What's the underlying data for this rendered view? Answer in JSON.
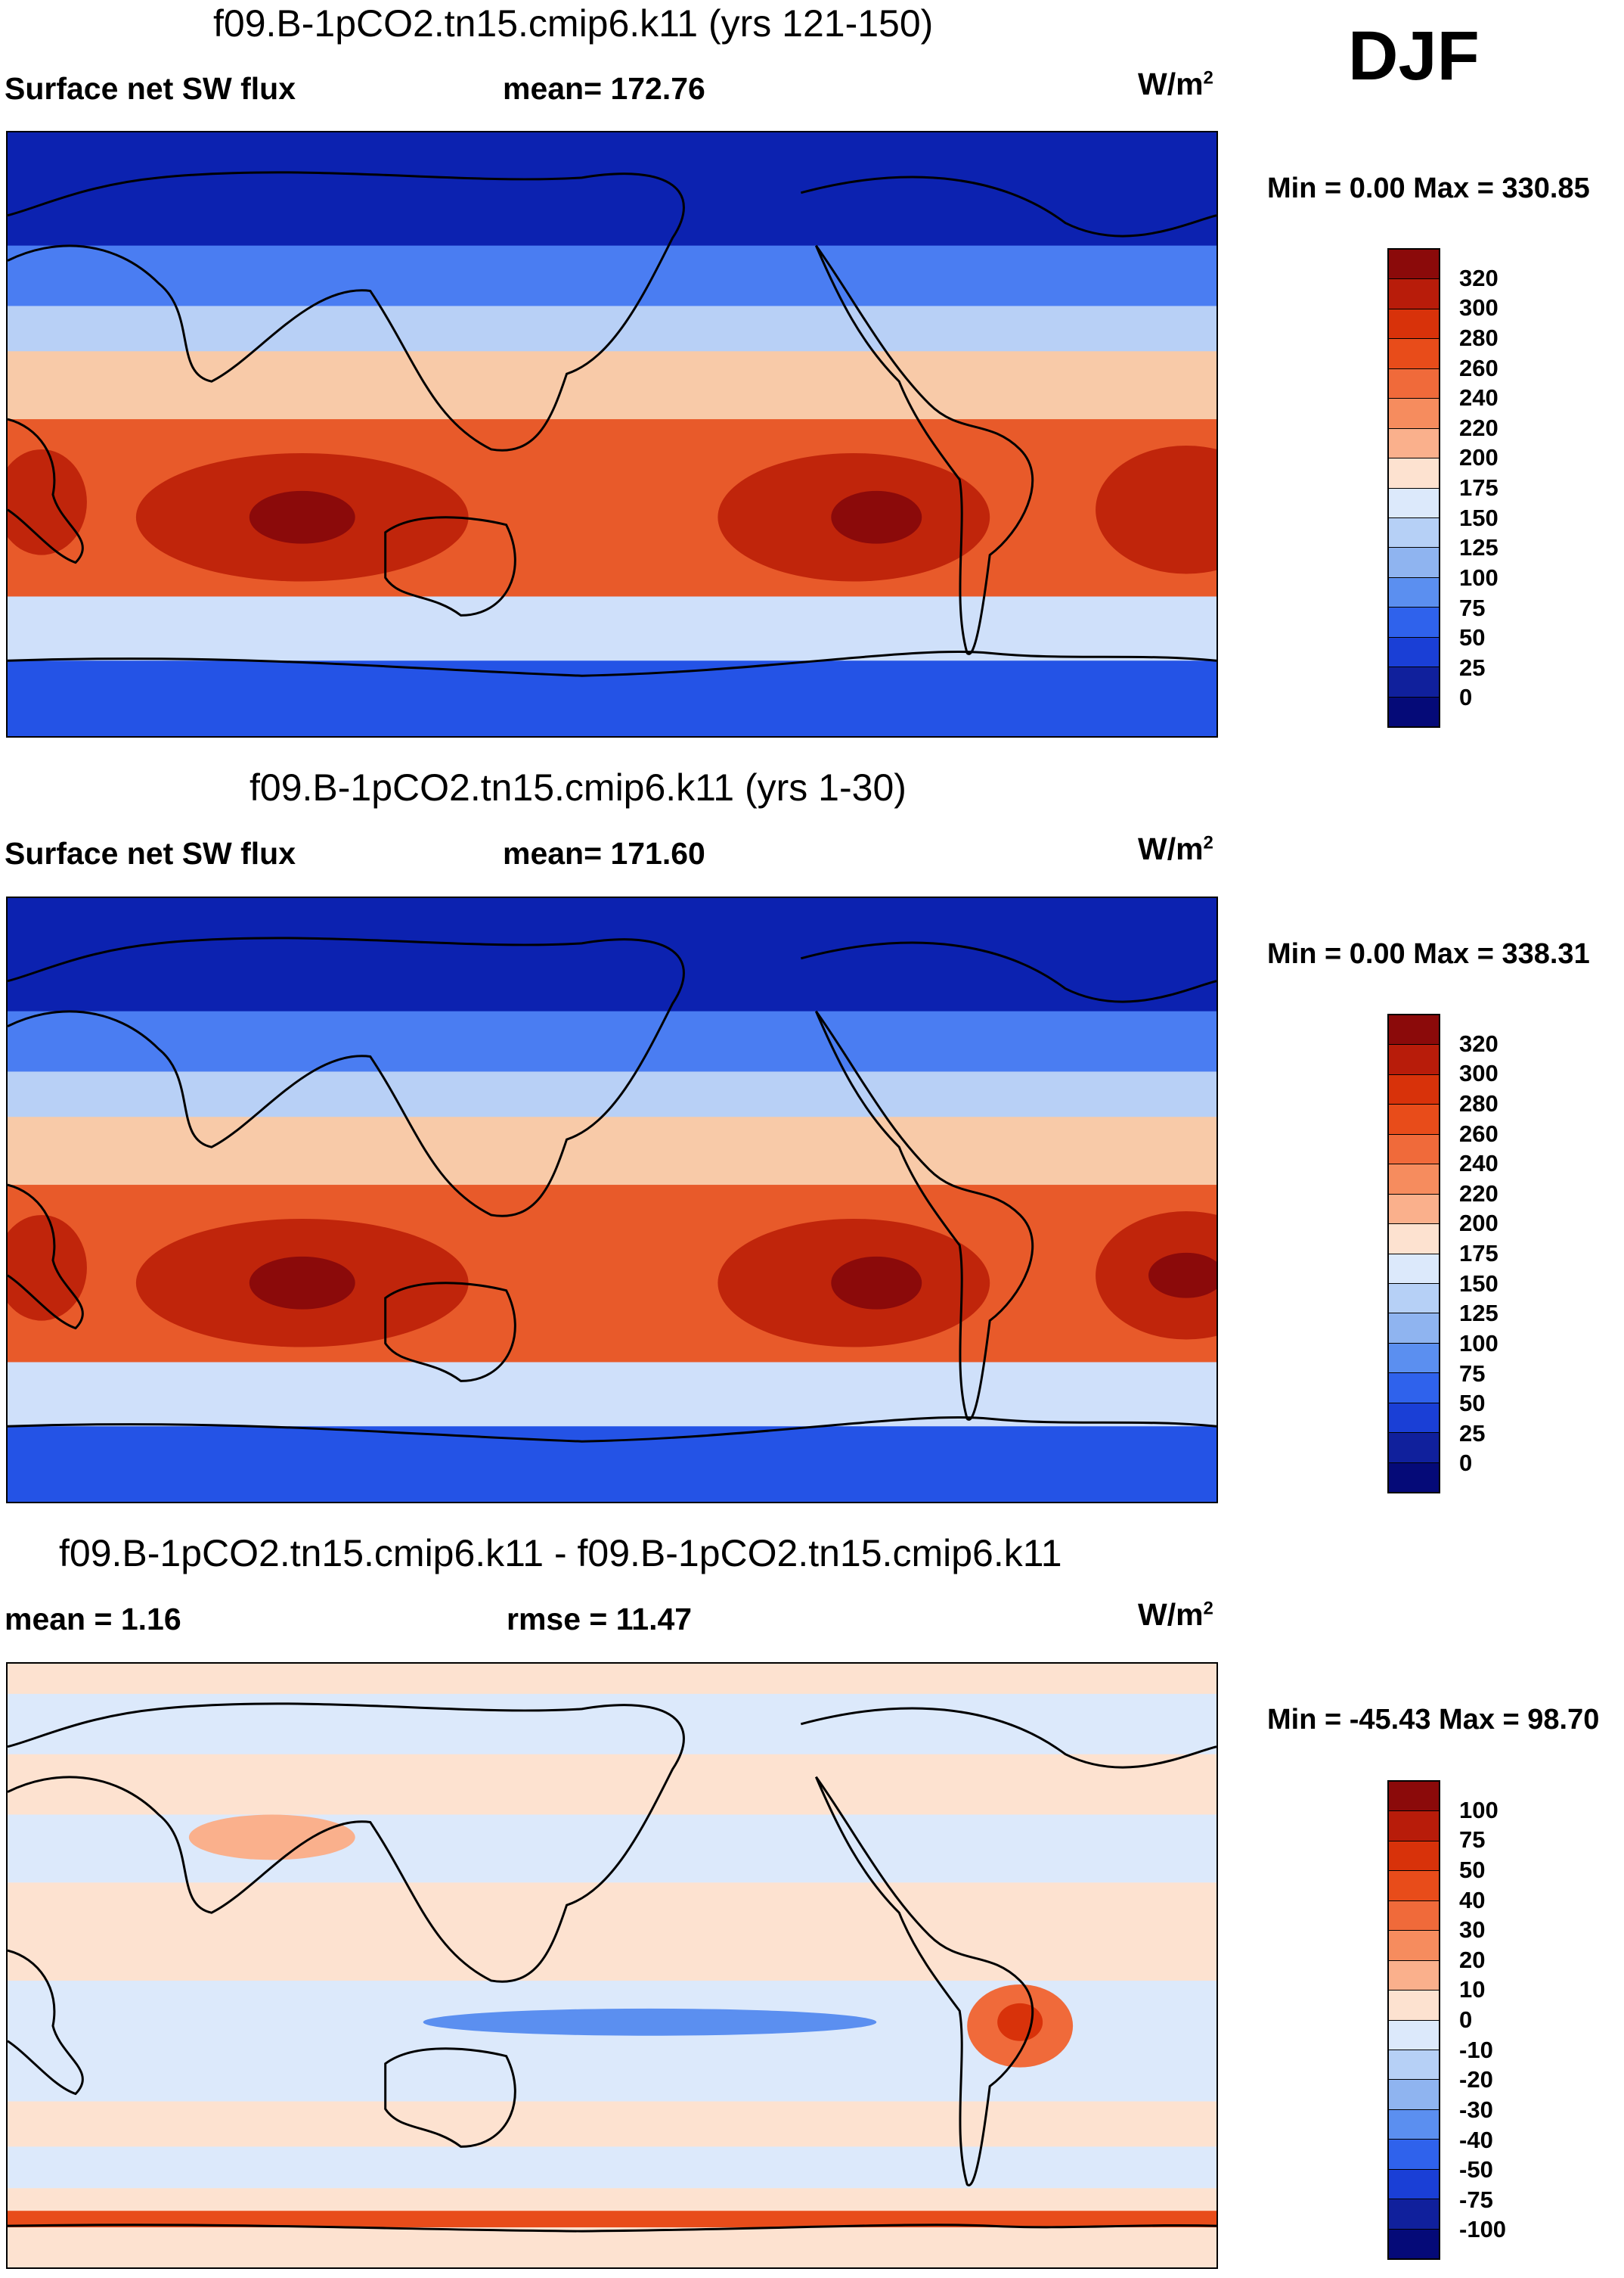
{
  "season": "DJF",
  "panels": [
    {
      "title": "f09.B-1pCO2.tn15.cmip6.k11 (yrs 121-150)",
      "left": "Surface net SW flux",
      "center": "mean= 172.76",
      "units": "W/m",
      "units_sup": "2",
      "minmax": "Min =   0.00 Max = 330.85",
      "colorbar": {
        "labels": [
          "320",
          "300",
          "280",
          "260",
          "240",
          "220",
          "200",
          "175",
          "150",
          "125",
          "100",
          "75",
          "50",
          "25",
          "0"
        ],
        "colors": [
          "#8b0a0a",
          "#b81c0a",
          "#d8320a",
          "#e84c1a",
          "#f06a3a",
          "#f68c5e",
          "#fab08c",
          "#fde2d0",
          "#dce9fb",
          "#b6d0f6",
          "#8fb4f0",
          "#5b8ff0",
          "#2f62ec",
          "#1a3fd6",
          "#10209c",
          "#050a78"
        ]
      },
      "map_fields": {
        "pole": "#0c22b0",
        "subpolar": "#4a7df2",
        "midlat": "#b8d0f6",
        "subtrop": "#f8caa8",
        "tropics": "#e85a2a",
        "core": "#c0250b",
        "max": "#8b0a0a",
        "south_ocean": "#cfe0fa",
        "antarctic": "#2453e6"
      }
    },
    {
      "title": "f09.B-1pCO2.tn15.cmip6.k11 (yrs 1-30)",
      "left": "Surface net SW flux",
      "center": "mean= 171.60",
      "units": "W/m",
      "units_sup": "2",
      "minmax": "Min =   0.00 Max = 338.31",
      "colorbar": {
        "labels": [
          "320",
          "300",
          "280",
          "260",
          "240",
          "220",
          "200",
          "175",
          "150",
          "125",
          "100",
          "75",
          "50",
          "25",
          "0"
        ],
        "colors": [
          "#8b0a0a",
          "#b81c0a",
          "#d8320a",
          "#e84c1a",
          "#f06a3a",
          "#f68c5e",
          "#fab08c",
          "#fde2d0",
          "#dce9fb",
          "#b6d0f6",
          "#8fb4f0",
          "#5b8ff0",
          "#2f62ec",
          "#1a3fd6",
          "#10209c",
          "#050a78"
        ]
      },
      "map_fields": {
        "pole": "#0c22b0",
        "subpolar": "#4a7df2",
        "midlat": "#b8d0f6",
        "subtrop": "#f8caa8",
        "tropics": "#e85a2a",
        "core": "#c0250b",
        "max": "#8b0a0a",
        "south_ocean": "#cfe0fa",
        "antarctic": "#2453e6"
      }
    },
    {
      "title": "f09.B-1pCO2.tn15.cmip6.k11 - f09.B-1pCO2.tn15.cmip6.k11",
      "left": "mean =   1.16",
      "center": "rmse =  11.47",
      "units": "W/m",
      "units_sup": "2",
      "minmax": "Min = -45.43 Max =  98.70",
      "colorbar": {
        "labels": [
          "100",
          "75",
          "50",
          "40",
          "30",
          "20",
          "10",
          "0",
          "-10",
          "-20",
          "-30",
          "-40",
          "-50",
          "-75",
          "-100"
        ],
        "colors": [
          "#8b0a0a",
          "#b81c0a",
          "#d8320a",
          "#e84c1a",
          "#f06a3a",
          "#f68c5e",
          "#fab08c",
          "#fde2d0",
          "#dce9fb",
          "#b6d0f6",
          "#8fb4f0",
          "#5b8ff0",
          "#2f62ec",
          "#1a3fd6",
          "#10209c",
          "#050a78"
        ]
      },
      "map_fields": {
        "background": "#fde2d0",
        "blue_band": "#cfe0fa",
        "deep_blue": "#5b8ff0",
        "red_spot": "#f06a3a",
        "south_band": "#e84c1a"
      }
    }
  ]
}
